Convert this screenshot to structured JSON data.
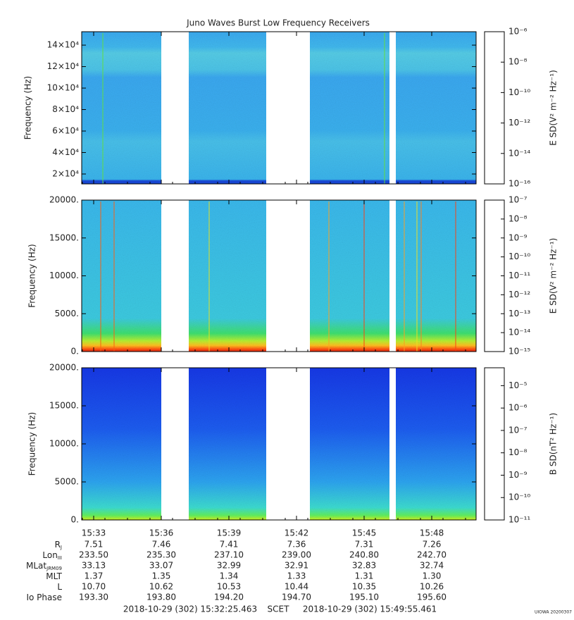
{
  "chart_data": [
    {
      "type": "spectrogram",
      "title": "Juno Waves Burst Low Frequency Receivers",
      "ylabel": "Frequency (Hz)",
      "ylim": [
        10800,
        152500
      ],
      "yticks": [
        {
          "value": 20000,
          "label": "2×10⁴"
        },
        {
          "value": 40000,
          "label": "4×10⁴"
        },
        {
          "value": 60000,
          "label": "6×10⁴"
        },
        {
          "value": 80000,
          "label": "8×10⁴"
        },
        {
          "value": 100000,
          "label": "10×10⁴"
        },
        {
          "value": 120000,
          "label": "12×10⁴"
        },
        {
          "value": 140000,
          "label": "14×10⁴"
        }
      ],
      "clabel": "E SD(V² m⁻² Hz⁻¹)",
      "clim": [
        1e-16,
        1e-06
      ],
      "clog": true,
      "cticks": [
        {
          "value": 1e-06,
          "label": "10⁻⁶"
        },
        {
          "value": 1e-08,
          "label": "10⁻⁸"
        },
        {
          "value": 1e-10,
          "label": "10⁻¹⁰"
        },
        {
          "value": 1e-12,
          "label": "10⁻¹²"
        },
        {
          "value": 1e-14,
          "label": "10⁻¹⁴"
        },
        {
          "value": 1e-16,
          "label": "10⁻¹⁶"
        }
      ]
    },
    {
      "type": "spectrogram",
      "ylabel": "Frequency (Hz)",
      "ylim": [
        0,
        20000
      ],
      "yticks": [
        {
          "value": 0,
          "label": "0."
        },
        {
          "value": 5000,
          "label": "5000."
        },
        {
          "value": 10000,
          "label": "10000."
        },
        {
          "value": 15000,
          "label": "15000."
        },
        {
          "value": 20000,
          "label": "20000."
        }
      ],
      "clabel": "E SD(V² m⁻² Hz⁻¹)",
      "clim": [
        1e-15,
        1e-07
      ],
      "clog": true,
      "cticks": [
        {
          "value": 1e-07,
          "label": "10⁻⁷"
        },
        {
          "value": 1e-08,
          "label": "10⁻⁸"
        },
        {
          "value": 1e-09,
          "label": "10⁻⁹"
        },
        {
          "value": 1e-10,
          "label": "10⁻¹⁰"
        },
        {
          "value": 1e-11,
          "label": "10⁻¹¹"
        },
        {
          "value": 1e-12,
          "label": "10⁻¹²"
        },
        {
          "value": 1e-13,
          "label": "10⁻¹³"
        },
        {
          "value": 1e-14,
          "label": "10⁻¹⁴"
        },
        {
          "value": 1e-15,
          "label": "10⁻¹⁵"
        }
      ]
    },
    {
      "type": "spectrogram",
      "ylabel": "Frequency (Hz)",
      "ylim": [
        0,
        20000
      ],
      "yticks": [
        {
          "value": 0,
          "label": "0."
        },
        {
          "value": 5000,
          "label": "5000."
        },
        {
          "value": 10000,
          "label": "10000."
        },
        {
          "value": 15000,
          "label": "15000."
        },
        {
          "value": 20000,
          "label": "20000."
        }
      ],
      "clabel": "B SD(nT² Hz⁻¹)",
      "clim": [
        1e-11,
        6.3e-05
      ],
      "clog": true,
      "cticks": [
        {
          "value": 1e-05,
          "label": "10⁻⁵"
        },
        {
          "value": 1e-06,
          "label": "10⁻⁶"
        },
        {
          "value": 1e-07,
          "label": "10⁻⁷"
        },
        {
          "value": 1e-08,
          "label": "10⁻⁸"
        },
        {
          "value": 1e-09,
          "label": "10⁻⁹"
        },
        {
          "value": 1e-10,
          "label": "10⁻¹⁰"
        },
        {
          "value": 1e-11,
          "label": "10⁻¹¹"
        }
      ]
    }
  ],
  "time_axis": [
    "15:33",
    "15:36",
    "15:39",
    "15:42",
    "15:45",
    "15:48"
  ],
  "ephemeris": [
    {
      "name": "R",
      "sub": "J",
      "values": [
        "7.51",
        "7.46",
        "7.41",
        "7.36",
        "7.31",
        "7.26"
      ]
    },
    {
      "name": "Lon",
      "sub": "III",
      "values": [
        "233.50",
        "235.30",
        "237.10",
        "239.00",
        "240.80",
        "242.70"
      ]
    },
    {
      "name": "MLat",
      "sub": "JRM09",
      "values": [
        "33.13",
        "33.07",
        "32.99",
        "32.91",
        "32.83",
        "32.74"
      ]
    },
    {
      "name": "MLT",
      "values": [
        "1.37",
        "1.35",
        "1.34",
        "1.33",
        "1.31",
        "1.30"
      ]
    },
    {
      "name": "L",
      "values": [
        "10.70",
        "10.62",
        "10.53",
        "10.44",
        "10.35",
        "10.26"
      ]
    },
    {
      "name": "Io Phase",
      "values": [
        "193.30",
        "193.80",
        "194.20",
        "194.70",
        "195.10",
        "195.60"
      ]
    }
  ],
  "footer": {
    "start": "2018-10-29 (302) 15:32:25.463",
    "mid": "SCET",
    "end": "2018-10-29 (302) 15:49:55.461",
    "stamp": "UIOWA 20200307"
  }
}
